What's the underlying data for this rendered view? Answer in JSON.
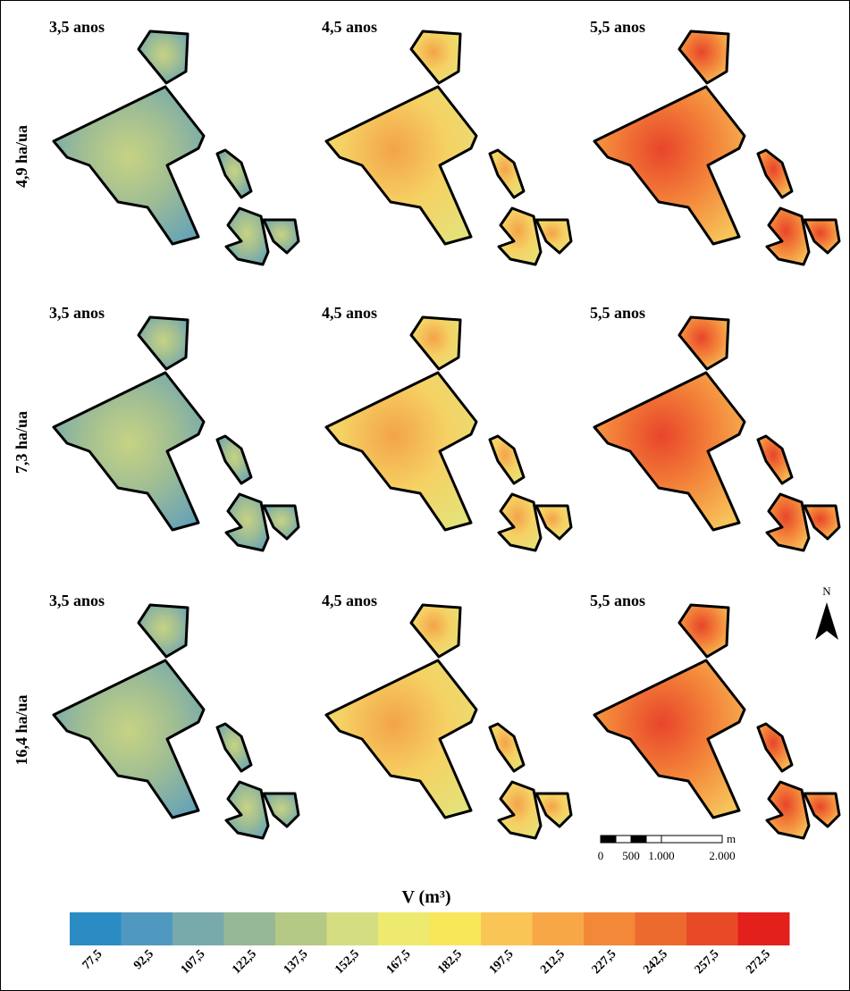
{
  "rows": [
    {
      "label": "4,9 ha/ua",
      "panels": [
        "3,5 anos",
        "4,5 anos",
        "5,5 anos"
      ]
    },
    {
      "label": "7,3 ha/ua",
      "panels": [
        "3,5 anos",
        "4,5 anos",
        "5,5 anos"
      ]
    },
    {
      "label": "16,4 ha/ua",
      "panels": [
        "3,5 anos",
        "4,5 anos",
        "5,5 anos"
      ]
    }
  ],
  "north": "N",
  "scale_bar": {
    "unit": "m",
    "ticks": [
      0,
      500,
      {
        "value": 1000,
        "label": "1.000"
      },
      {
        "value": 2000,
        "label": "2.000"
      }
    ]
  },
  "legend": {
    "title": "V (m³)",
    "ticks": [
      {
        "value": 77.5,
        "label": "77,5"
      },
      {
        "value": 92.5,
        "label": "92,5"
      },
      {
        "value": 107.5,
        "label": "107,5"
      },
      {
        "value": 122.5,
        "label": "122,5"
      },
      {
        "value": 137.5,
        "label": "137,5"
      },
      {
        "value": 152.5,
        "label": "152,5"
      },
      {
        "value": 167.5,
        "label": "167,5"
      },
      {
        "value": 182.5,
        "label": "182,5"
      },
      {
        "value": 197.5,
        "label": "197,5"
      },
      {
        "value": 212.5,
        "label": "212,5"
      },
      {
        "value": 227.5,
        "label": "227,5"
      },
      {
        "value": 242.5,
        "label": "242,5"
      },
      {
        "value": 257.5,
        "label": "257,5"
      },
      {
        "value": 272.5,
        "label": "272,5"
      }
    ],
    "colors": [
      "#2b8cc4",
      "#4f98c0",
      "#79aaab",
      "#97b896",
      "#b4c986",
      "#d4dd82",
      "#edea6f",
      "#f9e75a",
      "#f9c655",
      "#f7a746",
      "#f38838",
      "#ed6a2e",
      "#e84a27",
      "#e3201b"
    ]
  }
}
